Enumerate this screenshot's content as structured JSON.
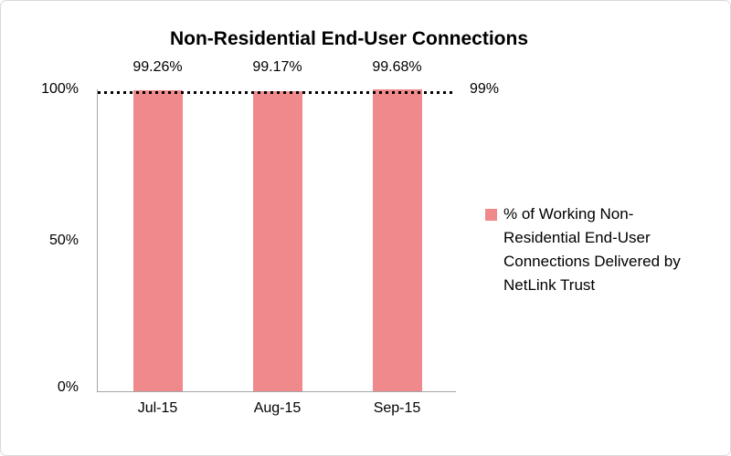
{
  "chart_data": {
    "type": "bar",
    "title": "Non-Residential End-User Connections",
    "categories": [
      "Jul-15",
      "Aug-15",
      "Sep-15"
    ],
    "values": [
      99.26,
      99.17,
      99.68
    ],
    "data_labels": [
      "99.26%",
      "99.17%",
      "99.68%"
    ],
    "xlabel": "",
    "ylabel": "",
    "ylim": [
      0,
      100
    ],
    "y_ticks": [
      {
        "value": 0,
        "label": "0%"
      },
      {
        "value": 50,
        "label": "50%"
      },
      {
        "value": 100,
        "label": "100%"
      }
    ],
    "grid": false,
    "reference_line": {
      "value": 99,
      "label": "99%",
      "style": "dotted",
      "color": "#000000"
    },
    "bar_color": "#F0898B",
    "axis_color": "#A6A6A6",
    "background": "#FFFFFF",
    "legend": {
      "position": "right",
      "entries": [
        {
          "label": "% of Working Non-Residential End-User Connections Delivered by NetLink Trust",
          "color": "#F0898B"
        }
      ]
    }
  }
}
